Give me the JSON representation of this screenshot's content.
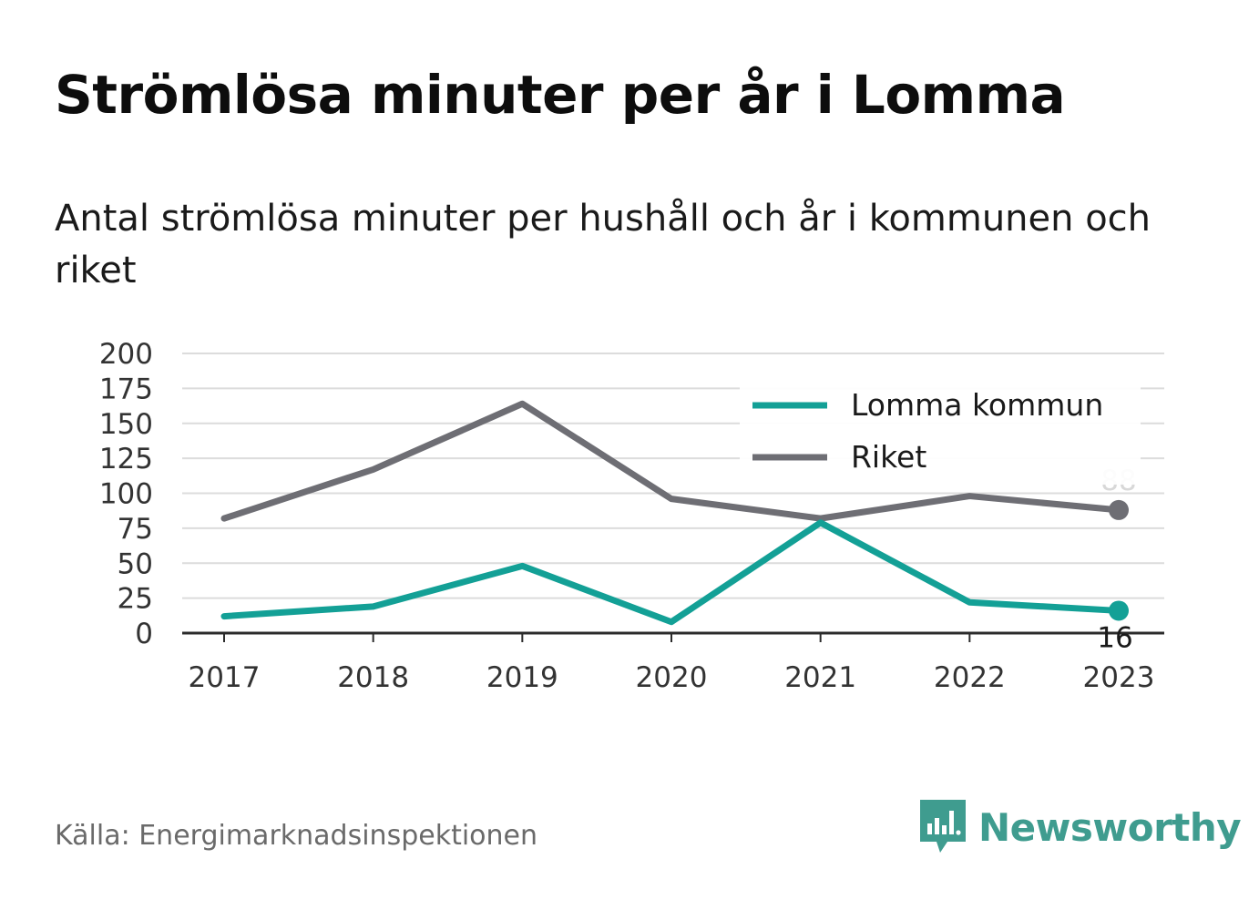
{
  "title": "Strömlösa minuter per år i Lomma",
  "subtitle": "Antal strömlösa minuter per hushåll och år i kommunen och riket",
  "source": "Källa: Energimarknadsinspektionen",
  "brand": {
    "name": "Newsworthy",
    "icon": "bar-chart-speech-bubble-icon",
    "color": "#3f9c8f"
  },
  "chart_data": {
    "type": "line",
    "x": [
      "2017",
      "2018",
      "2019",
      "2020",
      "2021",
      "2022",
      "2023"
    ],
    "ylim": [
      0,
      200
    ],
    "yticks": [
      0,
      25,
      50,
      75,
      100,
      125,
      150,
      175,
      200
    ],
    "grid": true,
    "legend_position": "top-right",
    "series": [
      {
        "name": "Lomma kommun",
        "color": "#13a096",
        "values": [
          12,
          19,
          48,
          8,
          79,
          22,
          16
        ],
        "end_label": "16"
      },
      {
        "name": "Riket",
        "color": "#6e6e74",
        "values": [
          82,
          117,
          164,
          96,
          82,
          98,
          88
        ],
        "end_label": "88"
      }
    ]
  }
}
